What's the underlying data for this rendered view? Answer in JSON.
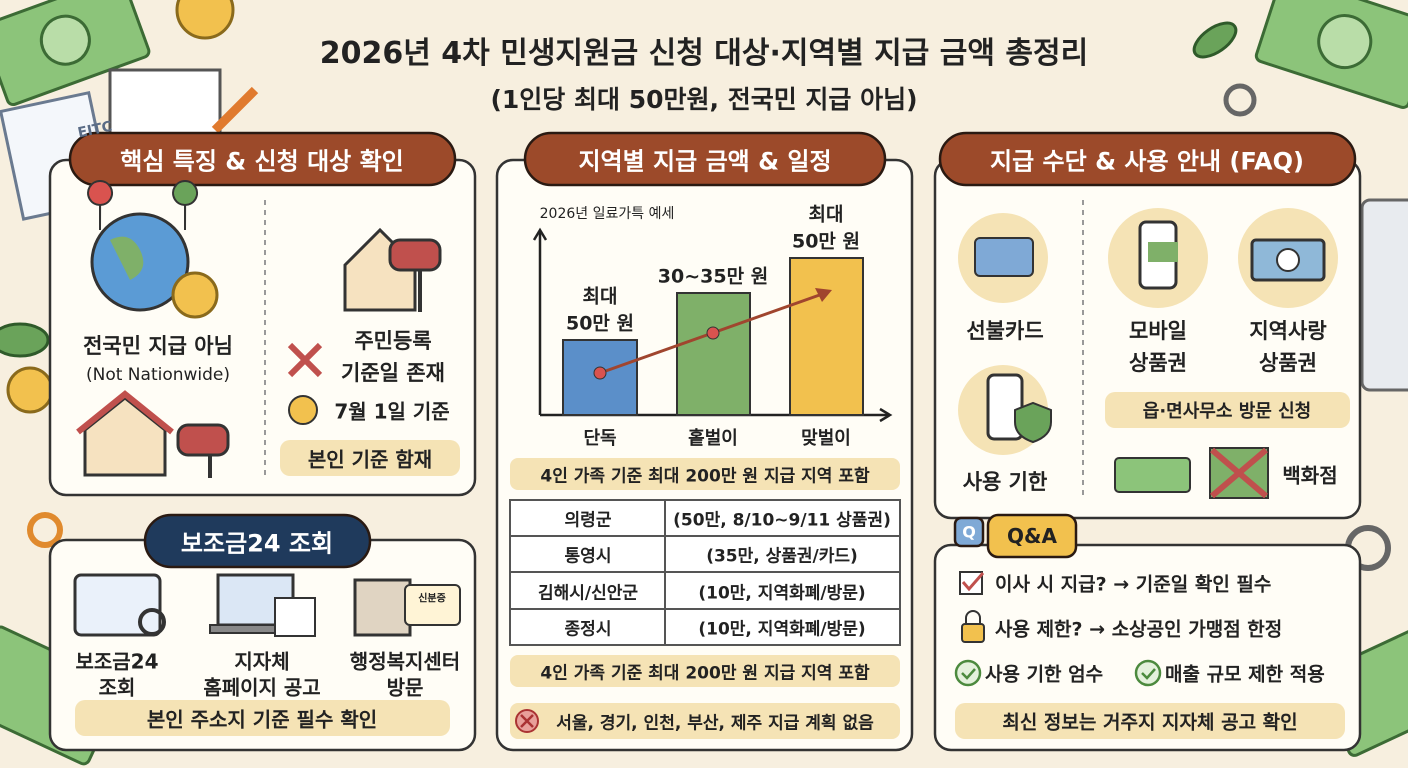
{
  "header": {
    "title": "2026년 4차 민생지원금 신청 대상·지역별 지급 금액 총정리",
    "subtitle": "(1인당 최대 50만원, 전국민 지급 아님)"
  },
  "decor": {
    "paper_label": "EITC",
    "id_card_label": "신분증"
  },
  "features": {
    "title": "핵심 특징 & 신청 대상 확인",
    "not_nationwide": {
      "label": "전국민 지급 아님",
      "sub": "(Not Nationwide)"
    },
    "registration": [
      "주민등록",
      "기준일 존재"
    ],
    "base_date": "7월 1일 기준",
    "note": "본인 기준 함재"
  },
  "lookup": {
    "title": "보조금24 조회",
    "items": [
      [
        "보조금24",
        "조회"
      ],
      [
        "지자체",
        "홈페이지 공고"
      ],
      [
        "행정복지센터",
        "방문"
      ]
    ],
    "note": "본인 주소지 기준 필수 확인"
  },
  "regions": {
    "title": "지역별 지급 금액 & 일정",
    "chart": {
      "caption": "2026년 일료가특 예세",
      "bars": [
        {
          "category": "단독",
          "label": [
            "최대",
            "50만 원"
          ]
        },
        {
          "category": "홑벌이",
          "label": [
            "30~35만 원"
          ]
        },
        {
          "category": "맞벌이",
          "label": [
            "최대",
            "50만 원"
          ]
        }
      ]
    },
    "banner_top": "4인 가족 기준 최대 200만 원 지급 지역 포함",
    "table": {
      "rows": [
        [
          "의령군",
          "(50만, 8/10~9/11 상품권)"
        ],
        [
          "통영시",
          "(35만, 상품권/카드)"
        ],
        [
          "김해시/신안군",
          "(10만, 지역화폐/방문)"
        ],
        [
          "종정시",
          "(10만, 지역화폐/방문)"
        ]
      ]
    },
    "banner_bottom": "4인 가족 기준 최대 200만 원 지급 지역 포함",
    "excluded": "서울, 경기, 인천, 부산, 제주 지급 계획 없음"
  },
  "payment": {
    "title": "지급 수단 & 사용 안내 (FAQ)",
    "prepaid": "선불카드",
    "mobile": [
      "모바일",
      "상품권"
    ],
    "local": [
      "지역사랑",
      "상품권"
    ],
    "period": "사용 기한",
    "visit": "읍·면사무소 방문 신청",
    "excluded_store": "백화점"
  },
  "qa": {
    "bubble": "Q",
    "badge": "Q&A",
    "rows": [
      "이사 시 지급? → 기준일 확인 필수",
      "사용 제한? → 소상공인 가맹점 한정"
    ],
    "checks": [
      "사용 기한 엄수",
      "매출 규모 제한 적용"
    ],
    "note": "최신 정보는 거주지 지자체 공고 확인"
  }
}
